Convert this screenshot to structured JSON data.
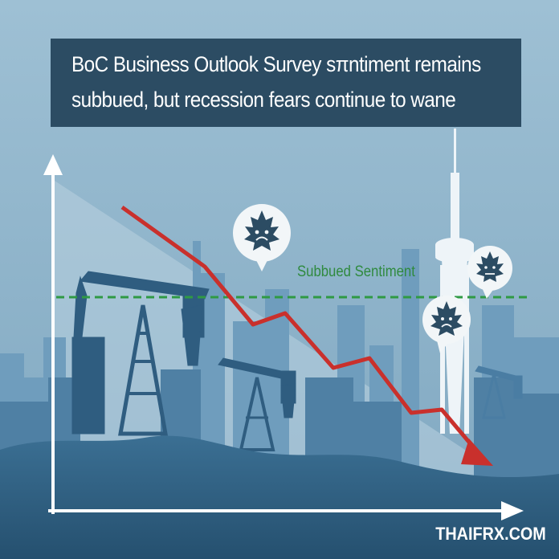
{
  "title": {
    "line1": "BoC Business Outlook Survey sπntiment remains",
    "line2": "subbued, but recession fears continue to wane"
  },
  "sentiment_label": "Subbued Sentiment",
  "watermark": "THAIFRX.COM",
  "colors": {
    "sky": "#8fb4c9",
    "title_bg": "#2c4c63",
    "trend_arrow": "#c9302c",
    "sentiment_line": "#2f9a44",
    "skyline_dark": "#2f5d80",
    "axis": "#ffffff"
  },
  "icons": [
    "up-arrow-icon",
    "right-arrow-icon",
    "sad-maple-leaf-icon",
    "oil-pump-icon",
    "cn-tower-icon"
  ]
}
